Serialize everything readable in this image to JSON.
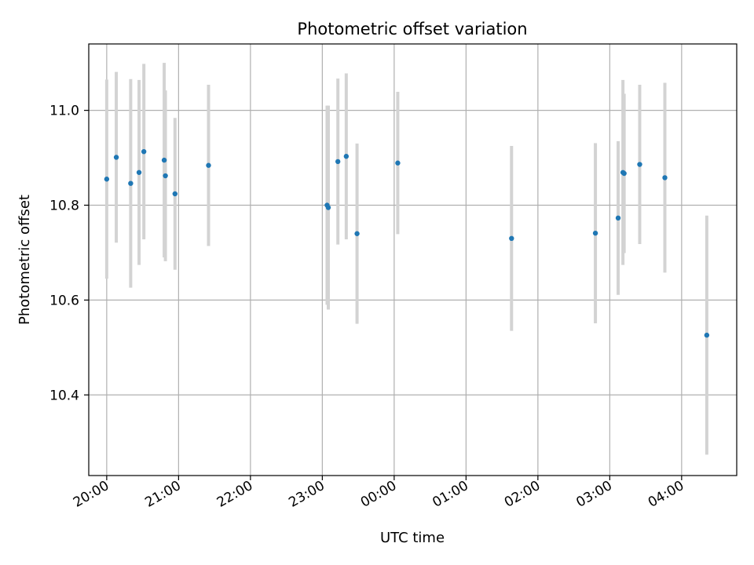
{
  "chart_data": {
    "type": "scatter",
    "title": "Photometric offset variation",
    "xlabel": "UTC time",
    "ylabel": "Photometric offset",
    "xlim": [
      "19:45",
      "04:46"
    ],
    "ylim": [
      10.23,
      11.14
    ],
    "yticks": [
      10.4,
      10.6,
      10.8,
      11.0
    ],
    "ytick_labels": [
      "10.4",
      "10.6",
      "10.8",
      "11.0"
    ],
    "xticks": [
      "20:00",
      "21:00",
      "22:00",
      "23:00",
      "00:00",
      "01:00",
      "02:00",
      "03:00",
      "04:00"
    ],
    "grid": true,
    "marker_color": "#1f77b4",
    "errorbar_color": "#d3d3d3",
    "points": [
      {
        "t": "20:00",
        "y": 10.855,
        "err": 0.21
      },
      {
        "t": "20:08",
        "y": 10.901,
        "err": 0.18
      },
      {
        "t": "20:20",
        "y": 10.846,
        "err": 0.22
      },
      {
        "t": "20:27",
        "y": 10.869,
        "err": 0.195
      },
      {
        "t": "20:31",
        "y": 10.913,
        "err": 0.185
      },
      {
        "t": "20:48",
        "y": 10.895,
        "err": 0.205
      },
      {
        "t": "20:49",
        "y": 10.862,
        "err": 0.18
      },
      {
        "t": "20:57",
        "y": 10.824,
        "err": 0.16
      },
      {
        "t": "21:25",
        "y": 10.884,
        "err": 0.17
      },
      {
        "t": "23:04",
        "y": 10.8,
        "err": 0.21
      },
      {
        "t": "23:05",
        "y": 10.795,
        "err": 0.215
      },
      {
        "t": "23:13",
        "y": 10.892,
        "err": 0.175
      },
      {
        "t": "23:20",
        "y": 10.903,
        "err": 0.175
      },
      {
        "t": "23:29",
        "y": 10.74,
        "err": 0.19
      },
      {
        "t": "00:03",
        "y": 10.889,
        "err": 0.15
      },
      {
        "t": "01:38",
        "y": 10.73,
        "err": 0.195
      },
      {
        "t": "02:48",
        "y": 10.741,
        "err": 0.19
      },
      {
        "t": "03:07",
        "y": 10.773,
        "err": 0.162
      },
      {
        "t": "03:11",
        "y": 10.869,
        "err": 0.195
      },
      {
        "t": "03:12",
        "y": 10.867,
        "err": 0.168
      },
      {
        "t": "03:25",
        "y": 10.886,
        "err": 0.168
      },
      {
        "t": "03:46",
        "y": 10.858,
        "err": 0.2
      },
      {
        "t": "04:21",
        "y": 10.526,
        "err": 0.252
      }
    ]
  }
}
